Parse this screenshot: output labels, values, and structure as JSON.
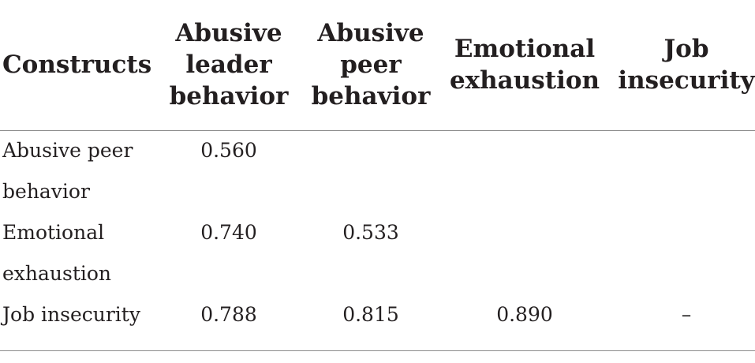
{
  "table": {
    "headers": [
      "Constructs",
      "Abusive\nleader\nbehavior",
      "Abusive\npeer\nbehavior",
      "Emotional\nexhaustion",
      "Job\ninsecurity"
    ],
    "rows": [
      {
        "label": "Abusive peer\nbehavior",
        "values": [
          "0.560",
          "",
          "",
          ""
        ]
      },
      {
        "label": "Emotional\nexhaustion",
        "values": [
          "0.740",
          "0.533",
          "",
          ""
        ]
      },
      {
        "label": "Job insecurity",
        "values": [
          "0.788",
          "0.815",
          "0.890",
          "–"
        ]
      }
    ]
  }
}
